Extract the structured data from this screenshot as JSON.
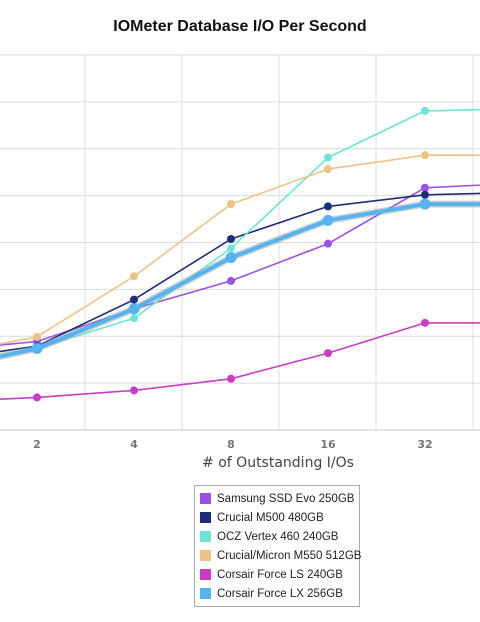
{
  "chart_data": {
    "type": "line",
    "title": "IOMeter Database I/O Per Second",
    "xlabel": "# of Outstanding I/Os",
    "ylabel": "",
    "x_scale": "log2",
    "categories": [
      "2",
      "4",
      "8",
      "16",
      "32"
    ],
    "x": [
      1,
      2,
      4,
      8,
      16,
      32,
      64
    ],
    "ylim": [
      0,
      9
    ],
    "grid": true,
    "legend_position": "bottom",
    "series": [
      {
        "name": "Samsung SSD Evo 250GB",
        "color": "#9b51e8",
        "values": [
          1.7,
          1.9,
          2.6,
          3.2,
          4.0,
          5.2,
          5.3
        ]
      },
      {
        "name": "Crucial M500 480GB",
        "color": "#1a2e7a",
        "values": [
          1.5,
          1.8,
          2.8,
          4.1,
          4.8,
          5.05,
          5.1
        ]
      },
      {
        "name": "OCZ Vertex 460 240GB",
        "color": "#6fe3d6",
        "values": [
          1.3,
          1.75,
          2.4,
          3.9,
          5.85,
          6.85,
          6.9
        ]
      },
      {
        "name": "Crucial/Micron M550 512GB",
        "color": "#efc185",
        "values": [
          1.6,
          2.0,
          3.3,
          4.85,
          5.6,
          5.9,
          5.9
        ]
      },
      {
        "name": "Corsair Force LS 240GB",
        "color": "#cc3cc2",
        "values": [
          0.6,
          0.7,
          0.85,
          1.1,
          1.65,
          2.3,
          2.3
        ]
      },
      {
        "name": "Corsair Force LX 256GB",
        "color": "#55b4ef",
        "values": [
          1.3,
          1.75,
          2.6,
          3.7,
          4.5,
          4.85,
          4.85
        ]
      }
    ]
  }
}
